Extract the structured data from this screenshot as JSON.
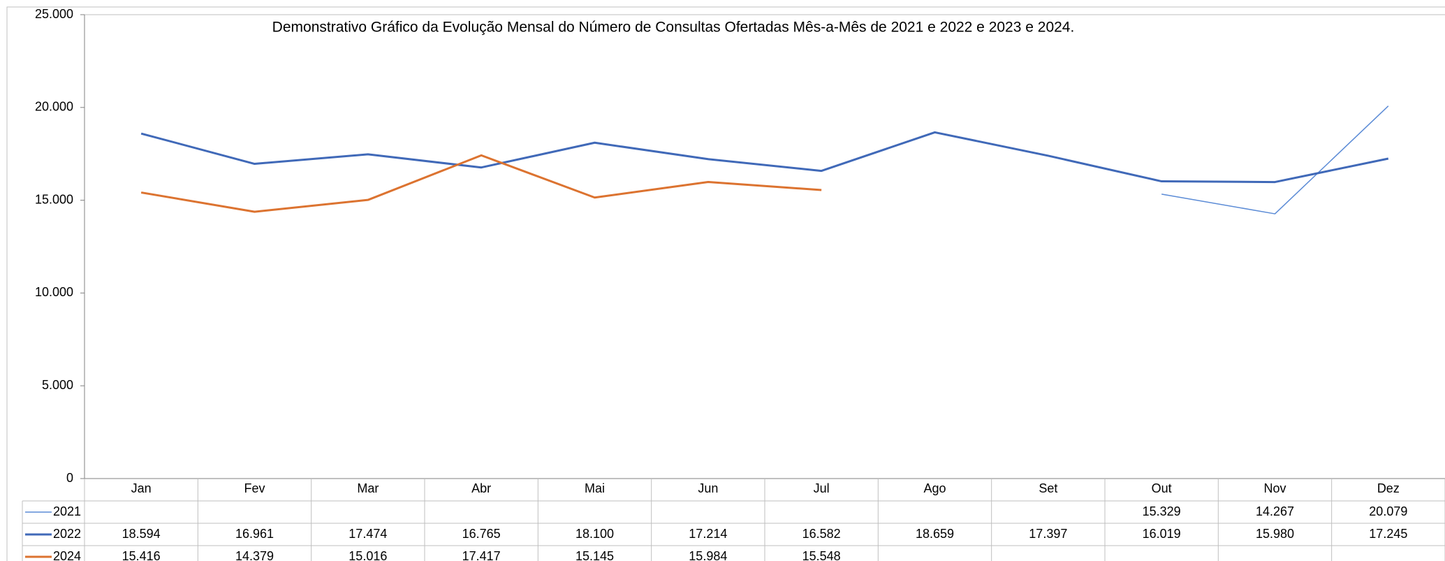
{
  "chart_data": {
    "type": "line",
    "title": "Demonstrativo Gráfico da Evolução Mensal do Número de Consultas Ofertadas Mês-a-Mês de 2021 e 2022 e 2023 e 2024.",
    "categories": [
      "Jan",
      "Fev",
      "Mar",
      "Abr",
      "Mai",
      "Jun",
      "Jul",
      "Ago",
      "Set",
      "Out",
      "Nov",
      "Dez"
    ],
    "series": [
      {
        "name": "2021",
        "color": "#5b8bd6",
        "line_width": 1.5,
        "values": [
          null,
          null,
          null,
          null,
          null,
          null,
          null,
          null,
          null,
          15329,
          14267,
          20079
        ],
        "value_labels": [
          null,
          null,
          null,
          null,
          null,
          null,
          null,
          null,
          null,
          "15.329",
          "14.267",
          "20.079"
        ]
      },
      {
        "name": "2022",
        "color": "#4069b8",
        "line_width": 3,
        "values": [
          18594,
          16961,
          17474,
          16765,
          18100,
          17214,
          16582,
          18659,
          17397,
          16019,
          15980,
          17245
        ],
        "value_labels": [
          "18.594",
          "16.961",
          "17.474",
          "16.765",
          "18.100",
          "17.214",
          "16.582",
          "18.659",
          "17.397",
          "16.019",
          "15.980",
          "17.245"
        ]
      },
      {
        "name": "2024",
        "color": "#dc7330",
        "line_width": 3,
        "values": [
          15416,
          14379,
          15016,
          17417,
          15145,
          15984,
          15548,
          null,
          null,
          null,
          null,
          null
        ],
        "value_labels": [
          "15.416",
          "14.379",
          "15.016",
          "17.417",
          "15.145",
          "15.984",
          "15.548",
          null,
          null,
          null,
          null,
          null
        ]
      }
    ],
    "ylim": [
      0,
      25000
    ],
    "yticks": [
      0,
      {
        "value": 5000,
        "label": "5.000"
      },
      {
        "value": 10000,
        "label": "10.000"
      },
      {
        "value": 15000,
        "label": "15.000"
      },
      {
        "value": 20000,
        "label": "20.000"
      },
      {
        "value": 25000,
        "label": "25.000"
      }
    ]
  }
}
